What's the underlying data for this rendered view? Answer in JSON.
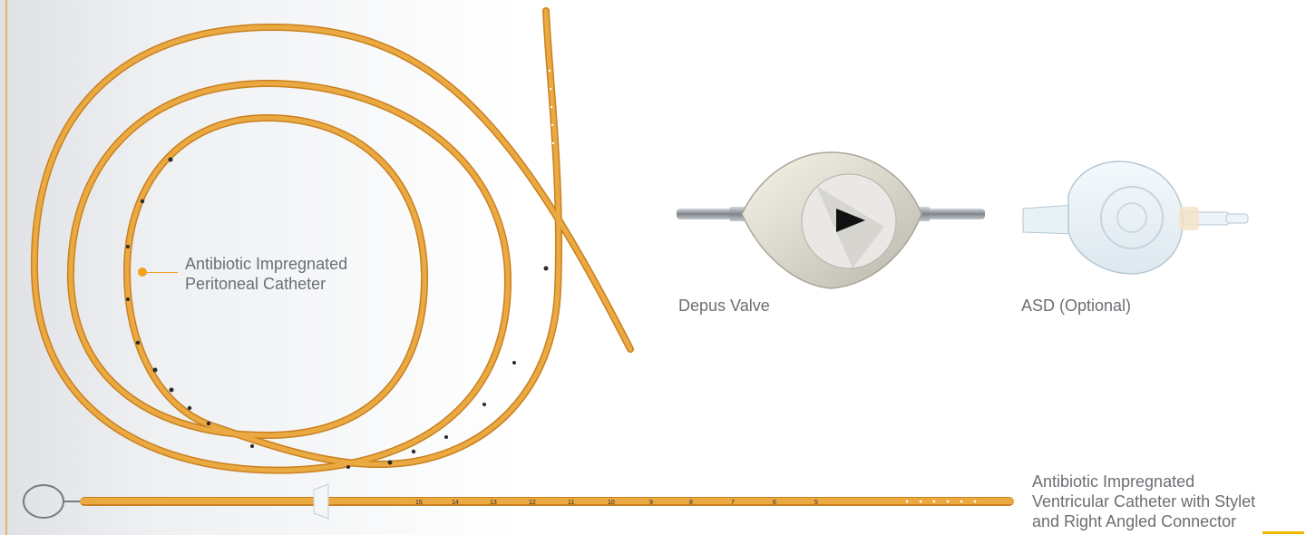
{
  "colors": {
    "catheter": "#e9a23c",
    "catheter_shade": "#c9801f",
    "accent": "#f0a020",
    "label_text": "#6b6f73"
  },
  "labels": {
    "peritoneal_catheter": [
      "Antibiotic Impregnated",
      "Peritoneal Catheter"
    ],
    "depus_valve": "Depus Valve",
    "asd": "ASD (Optional)",
    "ventricular_catheter": [
      "Antibiotic Impregnated",
      "Ventricular Catheter with Stylet",
      "and Right Angled Connector"
    ]
  },
  "ventricular_scale_marks": [
    "15",
    "14",
    "13",
    "12",
    "11",
    "10",
    "9",
    "8",
    "7",
    "6",
    "5"
  ]
}
